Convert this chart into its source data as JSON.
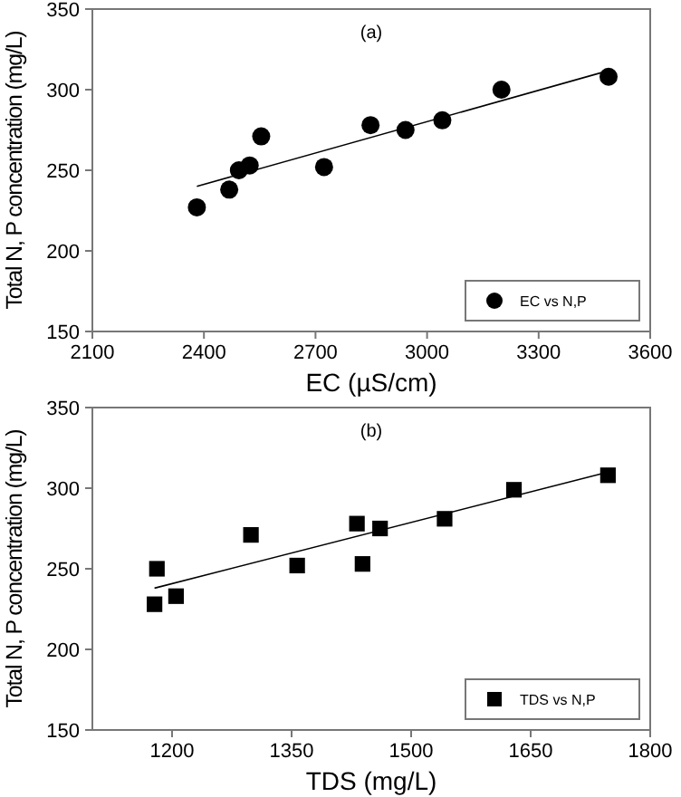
{
  "chart_data": [
    {
      "type": "scatter",
      "title": "(a)",
      "xlabel": "EC (µS/cm)",
      "ylabel": "Total N, P concentration (mg/L)",
      "legend": "bottom right",
      "xlim": [
        2100,
        3600
      ],
      "xticks": [
        2100,
        2400,
        2700,
        3000,
        3300,
        3600
      ],
      "ylim": [
        150,
        350
      ],
      "yticks": [
        150,
        200,
        250,
        300,
        350
      ],
      "series": [
        {
          "name": "EC vs N,P",
          "marker": "circle",
          "color": "#000000",
          "x": [
            2381,
            2468,
            2494,
            2523,
            2554,
            2723,
            2848,
            2942,
            3041,
            3200,
            3488
          ],
          "values": [
            227,
            238,
            250,
            253,
            271,
            252,
            278,
            275,
            281,
            300,
            308
          ]
        },
        {
          "type": "line",
          "marker": "none",
          "color": "#000000",
          "x": [
            2381,
            3491
          ],
          "values": [
            240,
            312
          ]
        }
      ]
    },
    {
      "type": "scatter",
      "title": "(b)",
      "xlabel": "TDS (mg/L)",
      "ylabel": "Total N, P concentration (mg/L)",
      "legend": "bottom right",
      "xlim": [
        1100,
        1800
      ],
      "xticks": [
        1200,
        1350,
        1500,
        1650,
        1800
      ],
      "ylim": [
        150,
        350
      ],
      "yticks": [
        150,
        200,
        250,
        300,
        350
      ],
      "series": [
        {
          "name": "TDS vs N,P",
          "marker": "square",
          "color": "#000000",
          "x": [
            1178,
            1181,
            1205,
            1299,
            1357,
            1432,
            1439,
            1461,
            1542,
            1629,
            1747
          ],
          "values": [
            228,
            250,
            233,
            271,
            252,
            278,
            253,
            275,
            281,
            299,
            308
          ]
        },
        {
          "type": "line",
          "marker": "none",
          "color": "#000000",
          "x": [
            1178,
            1747
          ],
          "values": [
            238,
            310
          ]
        }
      ]
    }
  ]
}
